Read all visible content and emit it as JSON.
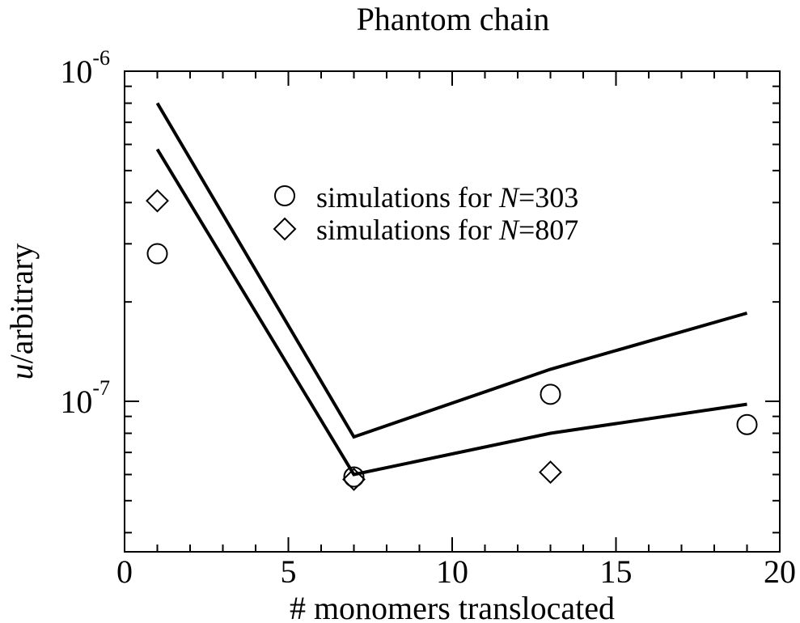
{
  "chart_data": {
    "type": "scatter",
    "title": "Phantom chain",
    "xlabel": "# monomers translocated",
    "ylabel_italic": "u",
    "ylabel_rest": "/arbitrary",
    "xlim": [
      0,
      20
    ],
    "ylim": [
      3.5e-08,
      1e-06
    ],
    "y_scale": "log",
    "x_major_ticks": [
      0,
      5,
      10,
      15,
      20
    ],
    "x_tick_labels": [
      "0",
      "5",
      "10",
      "15",
      "20"
    ],
    "x_minor_step": 1,
    "y_major_ticks": [
      1e-07,
      1e-06
    ],
    "y_tick_labels": [
      {
        "base": "10",
        "exp": "-7"
      },
      {
        "base": "10",
        "exp": "-6"
      }
    ],
    "y_minor_ticks": [
      4e-08,
      5e-08,
      6e-08,
      7e-08,
      8e-08,
      9e-08,
      2e-07,
      3e-07,
      4e-07,
      5e-07,
      6e-07,
      7e-07,
      8e-07,
      9e-07
    ],
    "grid": false,
    "legend_position": "upper-right",
    "series": [
      {
        "name_prefix": "simulations for ",
        "name_italic": "N",
        "name_suffix": "=303",
        "marker": "circle",
        "x": [
          1,
          7,
          13,
          19
        ],
        "y": [
          2.8e-07,
          5.9e-08,
          1.05e-07,
          8.5e-08
        ]
      },
      {
        "name_prefix": "simulations for ",
        "name_italic": "N",
        "name_suffix": "=807",
        "marker": "diamond",
        "x": [
          1,
          7,
          13,
          19
        ],
        "y": [
          4.05e-07,
          5.8e-08,
          6.1e-08,
          null
        ]
      },
      {
        "marker": "line",
        "x": [
          1,
          7,
          13,
          19
        ],
        "y": [
          8e-07,
          7.8e-08,
          1.25e-07,
          1.85e-07
        ]
      },
      {
        "marker": "line",
        "x": [
          1,
          7,
          13,
          19
        ],
        "y": [
          5.8e-07,
          6e-08,
          8e-08,
          9.8e-08
        ]
      }
    ]
  }
}
